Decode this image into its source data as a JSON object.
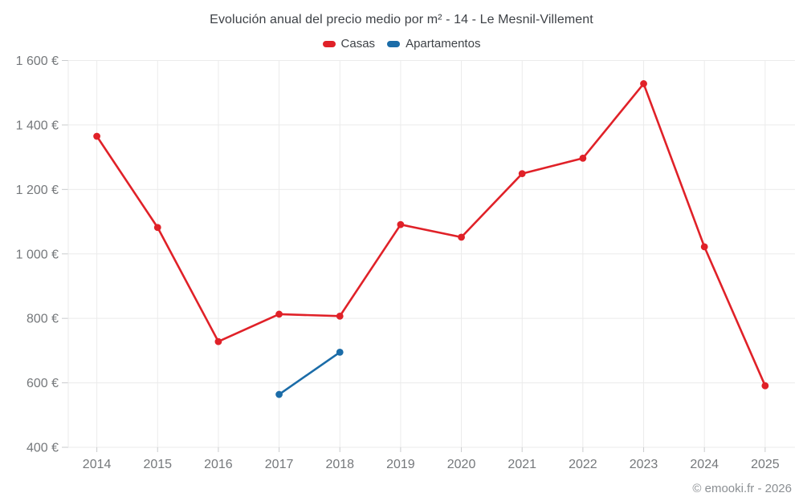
{
  "footer": {
    "attribution": "© emooki.fr - 2026"
  },
  "chart_data": {
    "type": "line",
    "title": "Evolución anual del precio medio por m² - 14 - Le Mesnil-Villement",
    "categories": [
      "2014",
      "2015",
      "2016",
      "2017",
      "2018",
      "2019",
      "2020",
      "2021",
      "2022",
      "2023",
      "2024",
      "2025"
    ],
    "series": [
      {
        "name": "Casas",
        "color": "#e02128",
        "values": [
          1365,
          1082,
          728,
          813,
          807,
          1091,
          1052,
          1249,
          1297,
          1528,
          1022,
          591
        ]
      },
      {
        "name": "Apartamentos",
        "color": "#1b6ca8",
        "values": [
          null,
          null,
          null,
          564,
          695,
          null,
          null,
          null,
          null,
          null,
          null,
          null
        ]
      }
    ],
    "ylim": [
      400,
      1600
    ],
    "y_ticks": [
      400,
      600,
      800,
      1000,
      1200,
      1400,
      1600
    ],
    "y_tick_labels": [
      "400 €",
      "600 €",
      "800 €",
      "1 000 €",
      "1 200 €",
      "1 400 €",
      "1 600 €"
    ],
    "grid": true,
    "legend_position": "top",
    "colors": {
      "gridline": "#ebebeb",
      "tick": "#c9cbcd",
      "axis_label": "#75787b",
      "title_text": "#3e4247"
    }
  }
}
